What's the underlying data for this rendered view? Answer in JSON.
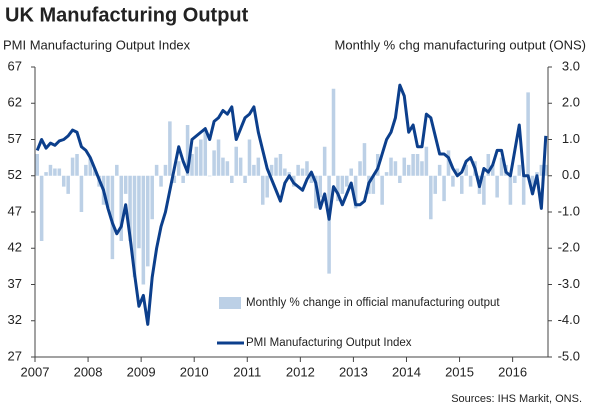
{
  "chart_data": {
    "type": "combo",
    "title": "UK Manufacturing Output",
    "y_label": "PMI Manufacturing Output Index",
    "y2_label": "Monthly % chg manufacturing output (ONS)",
    "source": "Sources: IHS Markit, ONS.",
    "categories": [
      "2007",
      null,
      null,
      null,
      null,
      null,
      null,
      null,
      null,
      null,
      null,
      null,
      "2008",
      null,
      null,
      null,
      null,
      null,
      null,
      null,
      null,
      null,
      null,
      null,
      "2009",
      null,
      null,
      null,
      null,
      null,
      null,
      null,
      null,
      null,
      null,
      null,
      "2010",
      null,
      null,
      null,
      null,
      null,
      null,
      null,
      null,
      null,
      null,
      null,
      "2011",
      null,
      null,
      null,
      null,
      null,
      null,
      null,
      null,
      null,
      null,
      null,
      "2012",
      null,
      null,
      null,
      null,
      null,
      null,
      null,
      null,
      null,
      null,
      null,
      "2013",
      null,
      null,
      null,
      null,
      null,
      null,
      null,
      null,
      null,
      null,
      null,
      "2014",
      null,
      null,
      null,
      null,
      null,
      null,
      null,
      null,
      null,
      null,
      null,
      "2015",
      null,
      null,
      null,
      null,
      null,
      null,
      null,
      null,
      null,
      null,
      null,
      "2016",
      null,
      null,
      null,
      null,
      null,
      null,
      null
    ],
    "ylim": [
      27,
      67
    ],
    "yticks": [
      27,
      32,
      37,
      42,
      47,
      52,
      57,
      62,
      67
    ],
    "y2lim": [
      -5,
      3
    ],
    "y2ticks": [
      {
        "value": -5,
        "label": "-5.0"
      },
      {
        "value": -4,
        "label": "-4.0"
      },
      {
        "value": -3,
        "label": "-3.0"
      },
      {
        "value": -2,
        "label": "-2.0"
      },
      {
        "value": -1,
        "label": "-1.0"
      },
      {
        "value": 0,
        "label": "0.0"
      },
      {
        "value": 1,
        "label": "1.0"
      },
      {
        "value": 2,
        "label": "2.0"
      },
      {
        "value": 3,
        "label": "3.0"
      }
    ],
    "series": [
      {
        "name": "Monthly % change in official manufacturing output",
        "type": "bar",
        "axis": "y2",
        "color": "#bcd0e6",
        "values": [
          0.6,
          -1.8,
          0.1,
          0.3,
          0.2,
          0.2,
          -0.3,
          -0.5,
          0.5,
          0.6,
          -1.0,
          0.3,
          0.5,
          0.2,
          -0.3,
          -0.8,
          -0.9,
          -2.3,
          0.3,
          -1.8,
          -0.5,
          -1.8,
          -2.8,
          -2.0,
          -3.0,
          -2.5,
          -1.2,
          0.3,
          -0.3,
          0.3,
          1.5,
          -0.2,
          0.4,
          -0.2,
          1.4,
          0.6,
          0.8,
          1.0,
          1.3,
          0.0,
          0.7,
          1.0,
          0.5,
          0.4,
          -0.2,
          0.8,
          0.5,
          -0.2,
          1.0,
          0.3,
          0.5,
          -0.8,
          -0.6,
          0.3,
          0.5,
          0.6,
          0.2,
          0.1,
          -0.3,
          0.3,
          0.2,
          0.4,
          -0.2,
          -0.9,
          -0.6,
          0.8,
          -2.7,
          2.4,
          -0.7,
          -0.5,
          -0.3,
          0.2,
          -0.9,
          0.4,
          0.9,
          -0.5,
          -0.5,
          0.6,
          -0.8,
          0.1,
          0.5,
          0.4,
          -0.2,
          0.5,
          0.3,
          0.6,
          0.6,
          0.4,
          0.8,
          -1.2,
          -0.5,
          0.3,
          -0.7,
          0.7,
          -0.3,
          0.2,
          -0.5,
          0.3,
          -0.3,
          0.4,
          -0.5,
          -0.8,
          0.6,
          0.3,
          -0.6,
          0.5,
          0.3,
          -0.8,
          -0.2,
          0.3,
          -0.8,
          2.3,
          -0.5,
          0.1,
          0.3,
          0.3
        ]
      },
      {
        "name": "PMI Manufacturing Output Index",
        "type": "line",
        "axis": "y",
        "color": "#0c3f8c",
        "values": [
          55.5,
          57.0,
          55.8,
          56.5,
          56.2,
          56.8,
          57.0,
          57.5,
          58.3,
          58.0,
          56.0,
          55.5,
          54.5,
          53.0,
          51.5,
          50.0,
          47.5,
          45.5,
          44.0,
          45.0,
          48.0,
          43.5,
          38.5,
          34.0,
          35.5,
          31.5,
          38.0,
          42.0,
          45.0,
          47.0,
          50.0,
          53.0,
          56.0,
          54.0,
          52.5,
          57.0,
          57.5,
          58.0,
          58.5,
          57.0,
          59.5,
          60.0,
          61.0,
          60.5,
          61.5,
          57.0,
          58.5,
          60.0,
          60.5,
          61.5,
          58.0,
          55.5,
          53.0,
          51.5,
          50.0,
          48.5,
          51.0,
          52.0,
          51.0,
          50.5,
          50.0,
          51.5,
          52.5,
          51.0,
          47.5,
          49.5,
          46.0,
          50.5,
          49.5,
          48.0,
          49.5,
          51.0,
          48.0,
          48.0,
          48.5,
          51.0,
          52.0,
          53.0,
          55.0,
          57.0,
          58.0,
          60.0,
          64.5,
          63.0,
          58.0,
          59.0,
          56.0,
          56.0,
          60.5,
          60.0,
          57.5,
          55.0,
          55.0,
          54.5,
          53.0,
          52.0,
          52.5,
          54.0,
          54.5,
          53.0,
          50.5,
          53.0,
          52.5,
          53.5,
          55.5,
          55.5,
          52.5,
          52.0,
          55.5,
          59.0,
          52.0,
          52.0,
          49.5,
          52.0,
          47.5,
          57.5
        ]
      }
    ]
  }
}
